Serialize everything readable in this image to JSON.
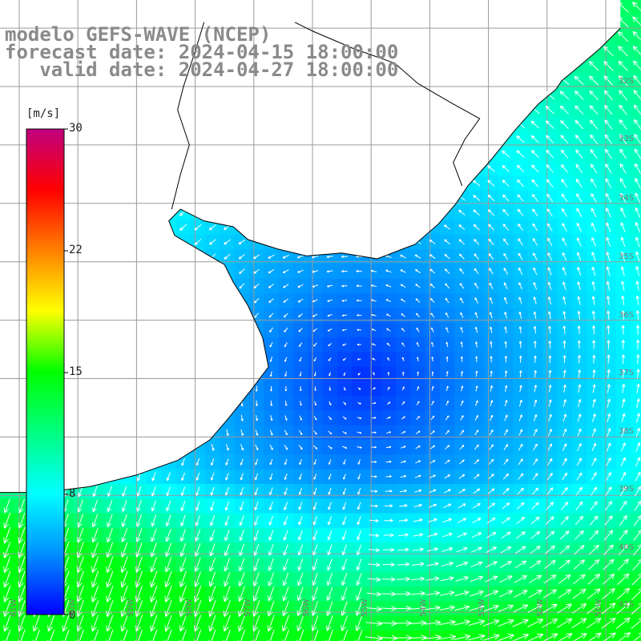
{
  "title": {
    "model": "modelo GEFS-WAVE (NCEP)",
    "forecast": "forecast date: 2024-04-15 18:00:00",
    "valid": "   valid date: 2024-04-27 18:00:00"
  },
  "colorbar": {
    "unit": "[m/s]",
    "ticks": [
      {
        "value": 30,
        "label": "30"
      },
      {
        "value": 22,
        "label": "22"
      },
      {
        "value": 15,
        "label": "15"
      },
      {
        "value": 8,
        "label": "8"
      },
      {
        "value": 0,
        "label": "0"
      }
    ],
    "range": [
      0,
      30
    ],
    "colors": [
      "#0000ff",
      "#0090ff",
      "#00ffff",
      "#00ff80",
      "#00ff00",
      "#ffff00",
      "#ff8000",
      "#ff0000",
      "#c00080"
    ]
  },
  "map": {
    "lon_range": [
      -61.5,
      -50.5
    ],
    "lat_range": [
      -41.8,
      -30.9
    ],
    "land_color": "#ffffff",
    "grid_color": "#9a9a9a",
    "coast_color": "#000000",
    "lat_labels": [
      "32S",
      "33S",
      "34S",
      "35S",
      "36S",
      "37S",
      "38S",
      "39S",
      "40S",
      "41S"
    ],
    "lon_labels": [
      "61W",
      "60W",
      "59W",
      "58W",
      "57W",
      "56W",
      "55W",
      "54W",
      "53W",
      "52W",
      "51W"
    ]
  }
}
